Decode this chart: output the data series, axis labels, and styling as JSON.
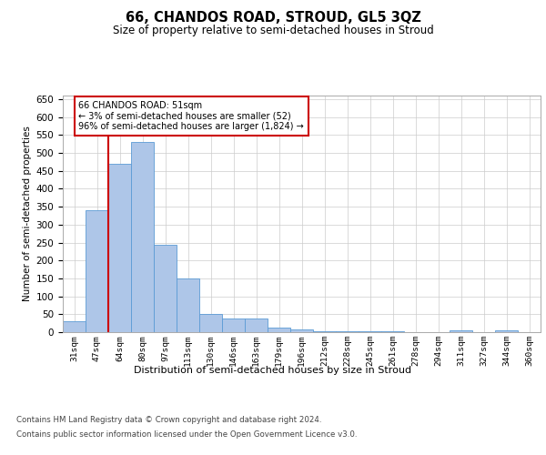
{
  "title": "66, CHANDOS ROAD, STROUD, GL5 3QZ",
  "subtitle": "Size of property relative to semi-detached houses in Stroud",
  "xlabel": "Distribution of semi-detached houses by size in Stroud",
  "ylabel": "Number of semi-detached properties",
  "bar_labels": [
    "31sqm",
    "47sqm",
    "64sqm",
    "80sqm",
    "97sqm",
    "113sqm",
    "130sqm",
    "146sqm",
    "163sqm",
    "179sqm",
    "196sqm",
    "212sqm",
    "228sqm",
    "245sqm",
    "261sqm",
    "278sqm",
    "294sqm",
    "311sqm",
    "327sqm",
    "344sqm",
    "360sqm"
  ],
  "bar_values": [
    30,
    340,
    470,
    530,
    243,
    150,
    50,
    37,
    37,
    13,
    8,
    3,
    3,
    3,
    3,
    0,
    0,
    5,
    0,
    5,
    0
  ],
  "bar_color": "#aec6e8",
  "bar_edge_color": "#5b9bd5",
  "property_line_x": 1.5,
  "annotation_text": "66 CHANDOS ROAD: 51sqm\n← 3% of semi-detached houses are smaller (52)\n96% of semi-detached houses are larger (1,824) →",
  "annotation_box_color": "#ffffff",
  "annotation_box_edge": "#cc0000",
  "vline_color": "#cc0000",
  "ylim": [
    0,
    660
  ],
  "yticks": [
    0,
    50,
    100,
    150,
    200,
    250,
    300,
    350,
    400,
    450,
    500,
    550,
    600,
    650
  ],
  "footer_line1": "Contains HM Land Registry data © Crown copyright and database right 2024.",
  "footer_line2": "Contains public sector information licensed under the Open Government Licence v3.0.",
  "bg_color": "#ffffff",
  "grid_color": "#cccccc"
}
